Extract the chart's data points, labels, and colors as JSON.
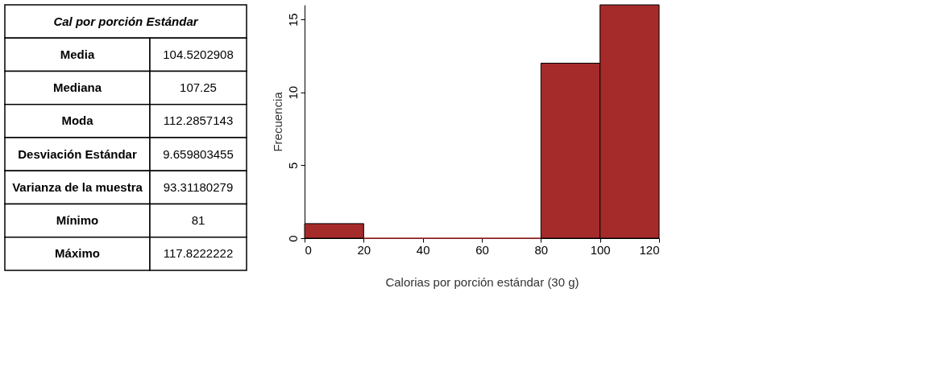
{
  "chart_data": [
    {
      "type": "other",
      "title": "Cal por porción Estándar",
      "annotations": [
        "Media",
        "104.5202908",
        "Mediana",
        "107.25",
        "Moda",
        "112.2857143",
        "Desviación  Estándar",
        "9.659803455",
        "Varianza de la muestra",
        "93.31180279",
        "Mínimo",
        "81",
        "Máximo",
        "117.8222222"
      ]
    },
    {
      "type": "histogram",
      "bins": [
        0,
        20,
        40,
        60,
        80,
        100,
        120
      ],
      "values": [
        1,
        0,
        0,
        0,
        12,
        16
      ],
      "color": "#a52a2a",
      "xlabel": "Calorias por porción estándar (30 g)",
      "ylabel": "Frecuencia",
      "xlim": [
        0,
        120
      ],
      "xticks": [
        0,
        20,
        40,
        60,
        80,
        100,
        120
      ],
      "ylim": [
        0,
        16
      ],
      "yticks": [
        0,
        5,
        10,
        15
      ]
    }
  ]
}
